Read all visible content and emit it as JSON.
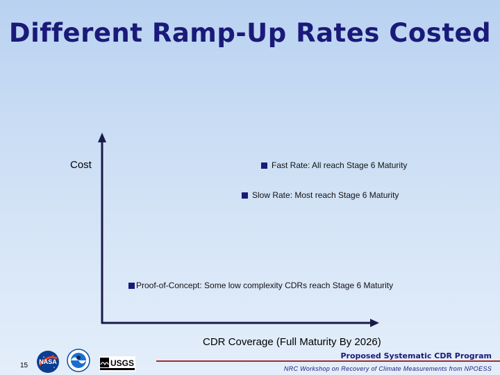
{
  "slide": {
    "title": "Different Ramp-Up Rates Costed",
    "page_number": "15"
  },
  "diagram": {
    "y_axis_label": "Cost",
    "x_axis_label": "CDR Coverage (Full Maturity By 2026)",
    "legend": [
      {
        "label": "Fast Rate:  All reach Stage 6 Maturity"
      },
      {
        "label": "Slow Rate:  Most reach Stage 6 Maturity"
      },
      {
        "label": "Proof-of-Concept: Some low complexity CDRs reach Stage 6 Maturity"
      }
    ],
    "colors": {
      "title": "#1a1a78",
      "axes": "#1a1a4a",
      "legend_swatch": "#1a1a78",
      "footer_rule": "#a52a2a"
    }
  },
  "footer": {
    "program_title": "Proposed Systematic CDR Program",
    "workshop": "NRC Workshop on Recovery of Climate Measurements from NPOESS",
    "logos": [
      "nasa-logo",
      "noaa-logo",
      "usgs-logo"
    ],
    "usgs_text": "USGS"
  }
}
